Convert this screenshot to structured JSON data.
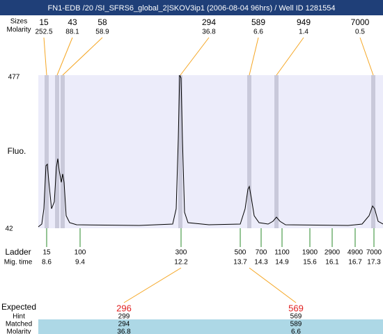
{
  "header": {
    "title": "FN1-EDB /20 /SI_SFRS6_global_2|SKOV3ip1 (2006-08-04 96hrs) / Well ID 1281554"
  },
  "peaks": {
    "sizes_label": "Sizes",
    "molarity_label": "Molarity",
    "sizes": [
      "15",
      "43",
      "58",
      "294",
      "589",
      "949",
      "7000"
    ],
    "molarity": [
      "252.5",
      "88.1",
      "58.9",
      "36.8",
      "6.6",
      "1.4",
      "0.5"
    ]
  },
  "axis": {
    "label": "Fluo.",
    "top": "477",
    "bottom": "42"
  },
  "ladder": {
    "label": "Ladder",
    "time_label": "Mig. time",
    "sizes": [
      "15",
      "100",
      "300",
      "500",
      "700",
      "1100",
      "1900",
      "2900",
      "4900",
      "7000"
    ],
    "times": [
      "8.6",
      "9.4",
      "12.2",
      "13.7",
      "14.3",
      "14.9",
      "15.6",
      "16.1",
      "16.7",
      "17.3"
    ]
  },
  "expected": {
    "label": "Expected",
    "values": [
      "296",
      "569"
    ],
    "rows": [
      {
        "label": "Hint",
        "values": [
          "299",
          "569"
        ]
      },
      {
        "label": "Matched",
        "values": [
          "294",
          "589"
        ]
      },
      {
        "label": "Molarity",
        "values": [
          "36.8",
          "6.6"
        ]
      }
    ]
  }
}
